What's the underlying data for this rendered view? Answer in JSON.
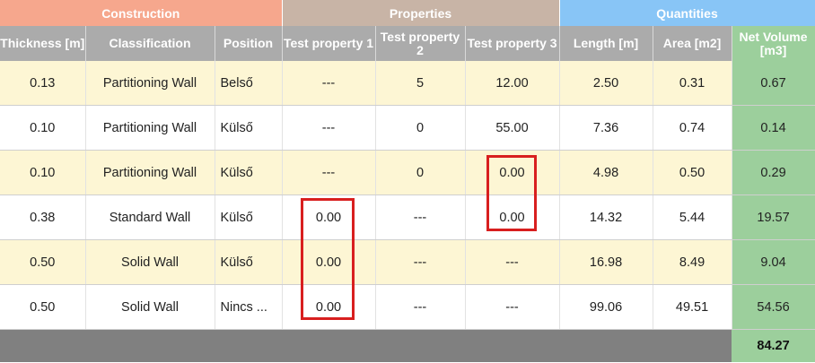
{
  "groups": {
    "construction": "Construction",
    "properties": "Properties",
    "quantities": "Quantities"
  },
  "columns": {
    "thickness": "Thickness [m]",
    "classification": "Classification",
    "position": "Position",
    "test1": "Test property 1",
    "test2": "Test property 2",
    "test3": "Test property 3",
    "length": "Length [m]",
    "area": "Area [m2]",
    "net_volume": "Net Volume [m3]"
  },
  "rows": [
    {
      "thickness": "0.13",
      "classification": "Partitioning Wall",
      "position": "Belső",
      "test1": "---",
      "test2": "5",
      "test3": "12.00",
      "length": "2.50",
      "area": "0.31",
      "net_volume": "0.67"
    },
    {
      "thickness": "0.10",
      "classification": "Partitioning Wall",
      "position": "Külső",
      "test1": "---",
      "test2": "0",
      "test3": "55.00",
      "length": "7.36",
      "area": "0.74",
      "net_volume": "0.14"
    },
    {
      "thickness": "0.10",
      "classification": "Partitioning Wall",
      "position": "Külső",
      "test1": "---",
      "test2": "0",
      "test3": "0.00",
      "length": "4.98",
      "area": "0.50",
      "net_volume": "0.29"
    },
    {
      "thickness": "0.38",
      "classification": "Standard Wall",
      "position": "Külső",
      "test1": "0.00",
      "test2": "---",
      "test3": "0.00",
      "length": "14.32",
      "area": "5.44",
      "net_volume": "19.57"
    },
    {
      "thickness": "0.50",
      "classification": "Solid Wall",
      "position": "Külső",
      "test1": "0.00",
      "test2": "---",
      "test3": "---",
      "length": "16.98",
      "area": "8.49",
      "net_volume": "9.04"
    },
    {
      "thickness": "0.50",
      "classification": "Solid Wall",
      "position": "Nincs ...",
      "test1": "0.00",
      "test2": "---",
      "test3": "---",
      "length": "99.06",
      "area": "49.51",
      "net_volume": "54.56"
    }
  ],
  "total_net_volume": "84.27",
  "colors": {
    "construction": "#f6a78d",
    "properties": "#c8b4a6",
    "quantities": "#88c5f6",
    "header": "#ababab",
    "net_volume": "#9ccf9c",
    "alt_row": "#fdf6d4",
    "highlight": "#d81f1f"
  }
}
